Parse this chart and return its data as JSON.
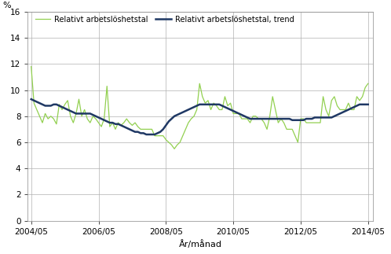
{
  "ylabel": "%",
  "xlabel": "År/månad",
  "legend_green": "Relativt arbetslöshetstal",
  "legend_blue": "Relativt arbetslöshetstal, trend",
  "green_color": "#92d050",
  "blue_color": "#1f3864",
  "ylim": [
    0,
    16
  ],
  "yticks": [
    0,
    2,
    4,
    6,
    8,
    10,
    12,
    14,
    16
  ],
  "xtick_labels": [
    "2004/05",
    "2006/05",
    "2008/05",
    "2010/05",
    "2012/05",
    "2014/05"
  ],
  "background_color": "#ffffff",
  "grid_color": "#b0b0b0",
  "trend": [
    9.3,
    9.2,
    9.1,
    9.0,
    8.9,
    8.8,
    8.8,
    8.8,
    8.9,
    8.9,
    8.8,
    8.7,
    8.6,
    8.5,
    8.4,
    8.3,
    8.2,
    8.2,
    8.2,
    8.2,
    8.2,
    8.2,
    8.1,
    8.0,
    7.9,
    7.8,
    7.7,
    7.6,
    7.5,
    7.5,
    7.4,
    7.4,
    7.3,
    7.2,
    7.1,
    7.0,
    6.9,
    6.8,
    6.8,
    6.7,
    6.7,
    6.6,
    6.6,
    6.6,
    6.6,
    6.7,
    6.8,
    7.0,
    7.3,
    7.6,
    7.8,
    8.0,
    8.1,
    8.2,
    8.3,
    8.4,
    8.5,
    8.6,
    8.7,
    8.8,
    8.9,
    8.9,
    8.9,
    8.9,
    8.9,
    8.9,
    8.9,
    8.9,
    8.8,
    8.7,
    8.6,
    8.5,
    8.4,
    8.3,
    8.2,
    8.1,
    8.0,
    7.9,
    7.8,
    7.8,
    7.8,
    7.8,
    7.8,
    7.8,
    7.8,
    7.8,
    7.8,
    7.8,
    7.8,
    7.8,
    7.8,
    7.8,
    7.8,
    7.7,
    7.7,
    7.7,
    7.7,
    7.7,
    7.8,
    7.8,
    7.8,
    7.9,
    7.9,
    7.9,
    7.9,
    7.9,
    7.9,
    7.9,
    8.0,
    8.1,
    8.2,
    8.3,
    8.4,
    8.5,
    8.6,
    8.7,
    8.8,
    8.9,
    8.9,
    8.9,
    8.9
  ],
  "green": [
    11.8,
    9.0,
    8.5,
    8.0,
    7.5,
    8.2,
    7.8,
    8.0,
    7.8,
    7.4,
    8.9,
    8.5,
    8.9,
    9.2,
    8.0,
    7.5,
    8.2,
    9.3,
    8.0,
    8.5,
    7.8,
    7.5,
    8.0,
    7.8,
    7.5,
    7.2,
    7.8,
    10.3,
    7.2,
    7.5,
    7.0,
    7.5,
    7.3,
    7.5,
    7.8,
    7.5,
    7.3,
    7.5,
    7.2,
    7.0,
    7.0,
    7.0,
    7.0,
    7.0,
    6.5,
    6.5,
    6.5,
    6.5,
    6.2,
    6.0,
    5.8,
    5.5,
    5.8,
    6.0,
    6.5,
    7.0,
    7.5,
    7.8,
    8.0,
    8.5,
    10.5,
    9.5,
    9.0,
    9.2,
    8.5,
    9.0,
    8.8,
    8.5,
    8.5,
    9.5,
    8.8,
    9.0,
    8.2,
    8.2,
    8.2,
    7.8,
    7.8,
    7.8,
    7.5,
    8.0,
    8.0,
    7.8,
    7.8,
    7.5,
    7.0,
    8.0,
    9.5,
    8.5,
    7.5,
    7.8,
    7.5,
    7.0,
    7.0,
    7.0,
    6.5,
    6.0,
    7.8,
    7.8,
    7.5,
    7.5,
    7.5,
    7.5,
    7.5,
    7.5,
    9.5,
    8.5,
    8.0,
    9.2,
    9.5,
    8.8,
    8.5,
    8.5,
    8.5,
    9.0,
    8.5,
    8.5,
    9.5,
    9.2,
    9.5,
    10.2,
    10.5
  ]
}
